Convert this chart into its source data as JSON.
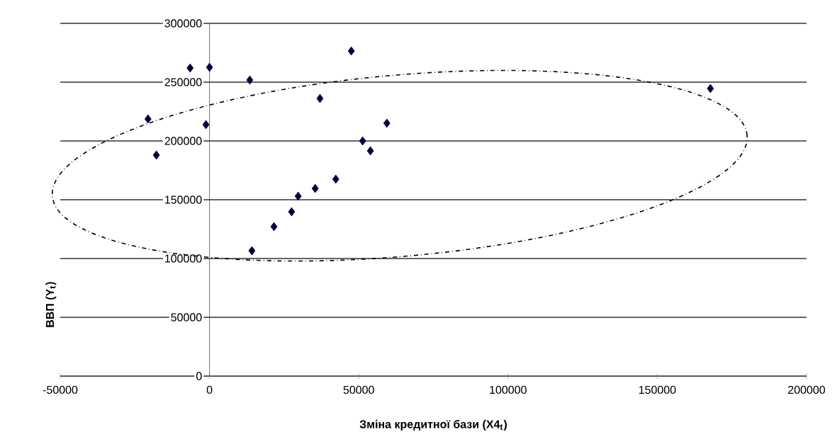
{
  "chart_data": {
    "type": "scatter",
    "xlabel": "Зміна кредитної бази (X4$_{t}$)",
    "ylabel": "ВВП (Y$_{t}$)",
    "x": [
      -6500,
      0,
      -20600,
      -17800,
      -1200,
      13500,
      14200,
      21600,
      27500,
      29700,
      35400,
      37000,
      42300,
      47500,
      51300,
      53900,
      59400,
      167800
    ],
    "series": [
      {
        "color": "#000040",
        "values": [
          262000,
          262600,
          218700,
          188000,
          213900,
          251800,
          106600,
          127100,
          139800,
          153000,
          159600,
          236100,
          167500,
          276500,
          200000,
          191600,
          215100,
          244600
        ]
      }
    ],
    "xlim": [
      -50000,
      200000
    ],
    "ylim": [
      0,
      300000
    ],
    "xticks": [
      -50000,
      0,
      50000,
      100000,
      150000,
      200000
    ],
    "yticks": [
      0,
      50000,
      100000,
      150000,
      200000,
      250000,
      300000
    ],
    "grid": "y",
    "marker": "diamond"
  }
}
